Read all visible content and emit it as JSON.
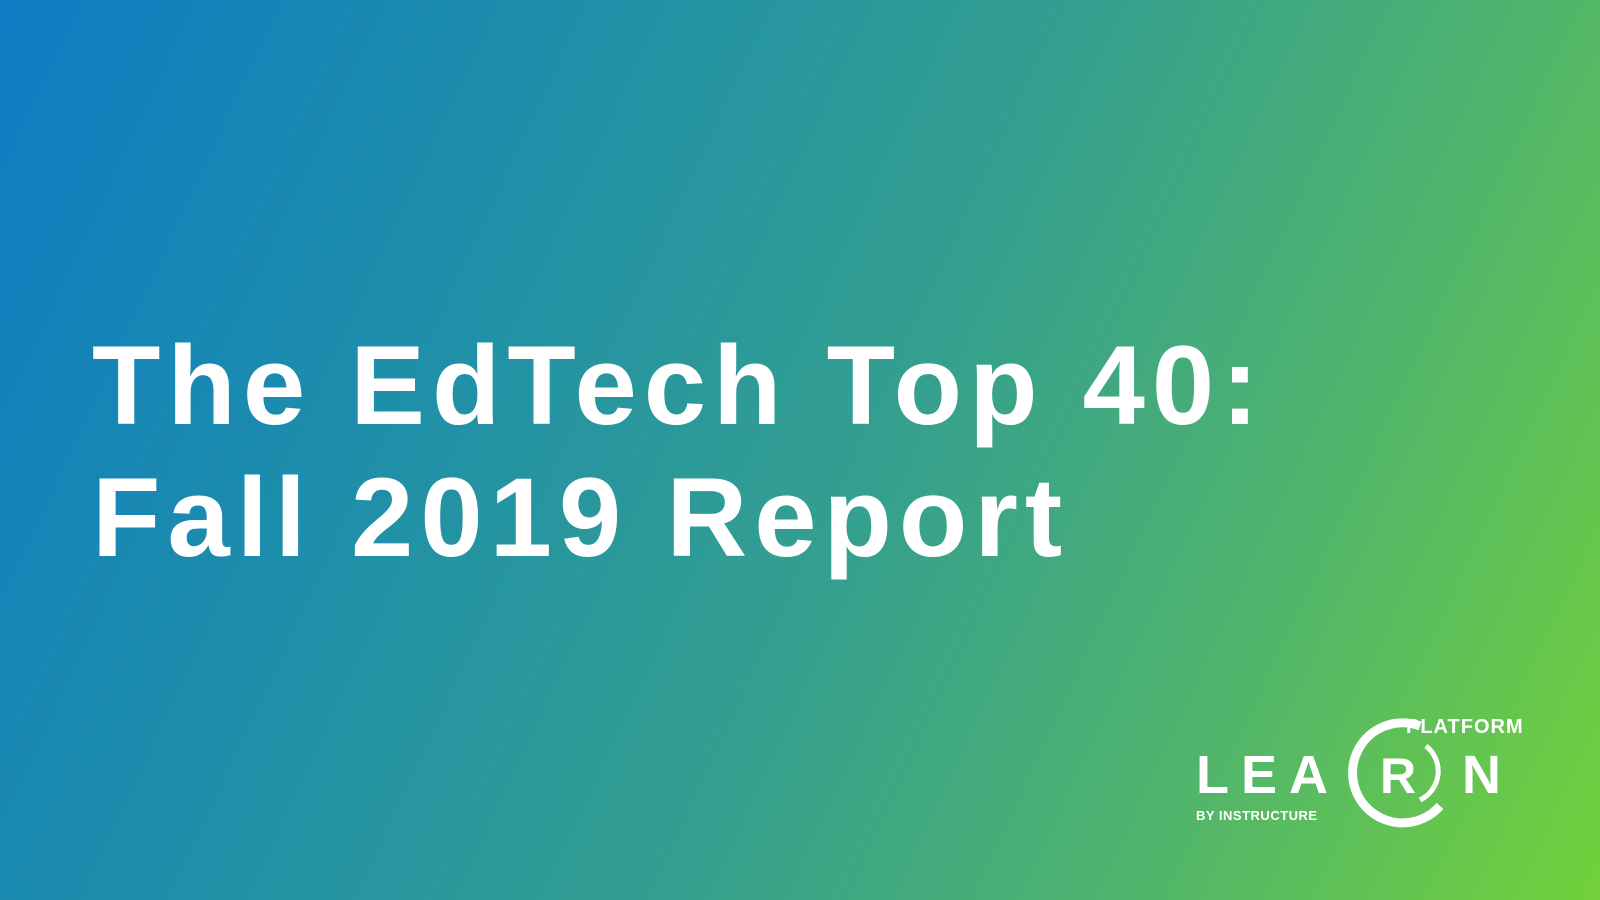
{
  "title": {
    "lines": [
      "The EdTech Top 40:",
      "Fall 2019 Report"
    ]
  },
  "logo": {
    "left": "LEA",
    "center": "R",
    "right": "N",
    "top": "PLATFORM",
    "byline": "BY INSTRUCTURE"
  }
}
